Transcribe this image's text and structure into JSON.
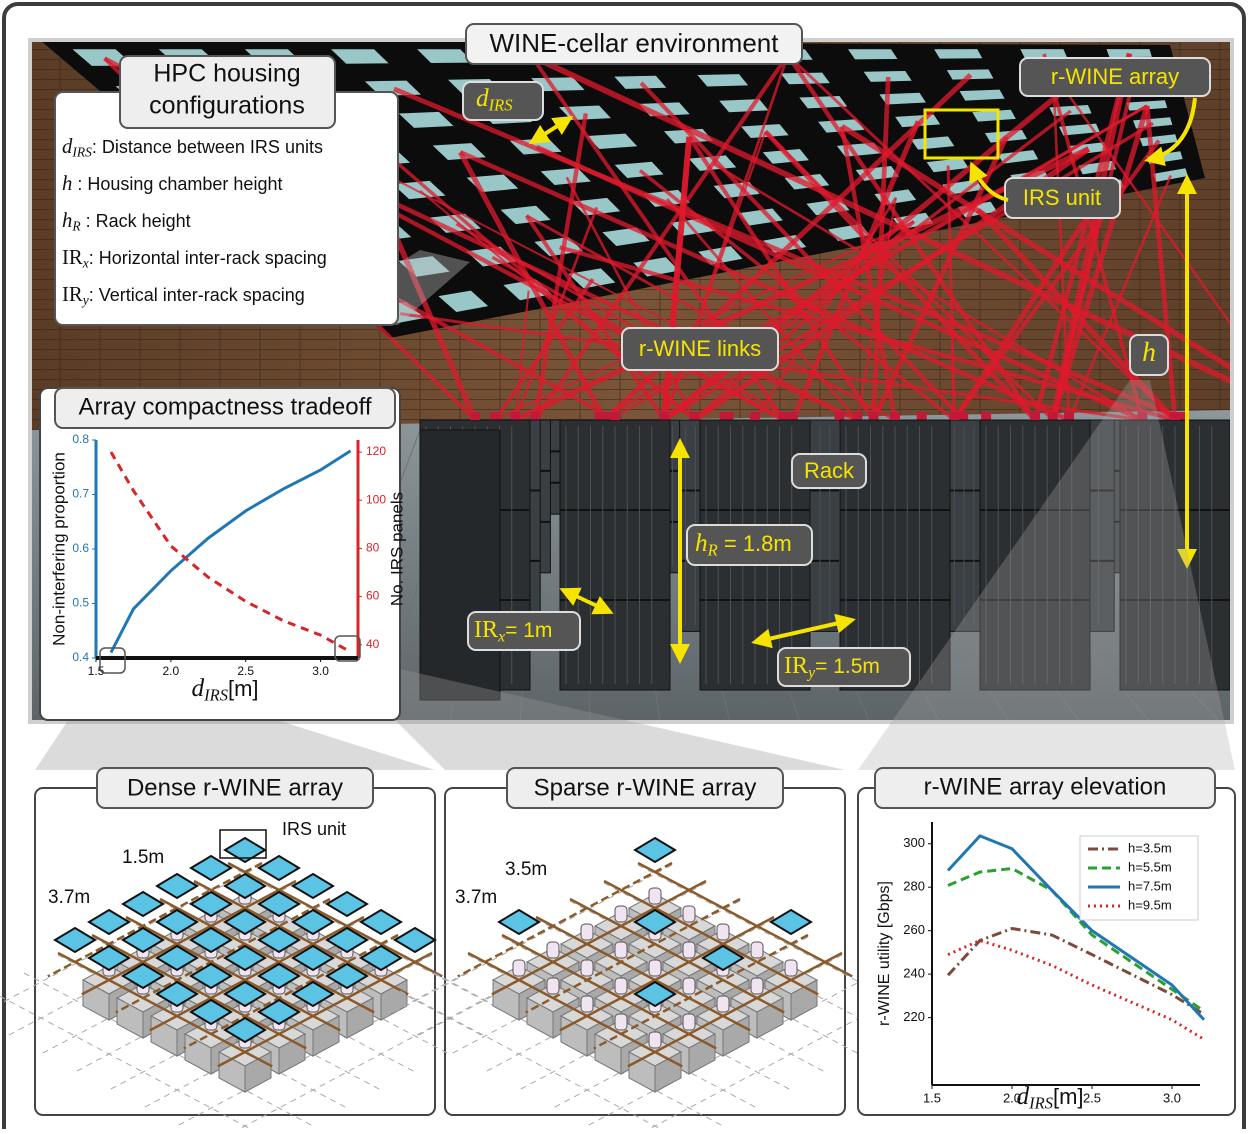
{
  "scene": {
    "title": "WINE-cellar environment",
    "r_wine_array": "r-WINE array",
    "irs_unit": "IRS unit",
    "d_irs": {
      "symbol": "d",
      "sub": "IRS"
    },
    "links": "r-WINE links",
    "h": {
      "symbol": "h"
    },
    "rack": "Rack",
    "h_r": {
      "symbol": "h",
      "sub": "R",
      "text": " = 1.8m"
    },
    "ir_x": {
      "symbol": "IR",
      "sub": "x",
      "text": "= 1m"
    },
    "ir_y": {
      "symbol": "IR",
      "sub": "y",
      "text": "= 1.5m"
    }
  },
  "hpc": {
    "title_lines": [
      "HPC  housing",
      "configurations"
    ],
    "items": [
      {
        "symbol": "d",
        "sub": "IRS",
        "text": ": Distance between IRS units"
      },
      {
        "symbol": "h",
        "text": " : Housing chamber height"
      },
      {
        "symbol": "h",
        "sub": "R",
        "text": " : Rack height"
      },
      {
        "symbol": "IR",
        "sub": "x",
        "text": ": Horizontal inter-rack spacing"
      },
      {
        "symbol": "IR",
        "sub": "y",
        "text": ": Vertical inter-rack spacing"
      }
    ]
  },
  "panels": [
    {
      "title": "Dense r-WINE array",
      "labels": [
        "IRS unit",
        "1.5m",
        "3.7m"
      ]
    },
    {
      "title": "Sparse r-WINE array",
      "labels": [
        "3.5m",
        "3.7m"
      ]
    }
  ],
  "chart_data": [
    {
      "type": "line",
      "title": "Array compactness tradeoff",
      "xlabel": {
        "symbol": "d",
        "sub": "IRS",
        "text": "[m]"
      },
      "ylabel": "Non-interfering proportion",
      "y2label": "No. IRS panels",
      "x": [
        1.6,
        1.75,
        2.0,
        2.25,
        2.5,
        2.75,
        3.0,
        3.2
      ],
      "xlim": [
        1.5,
        3.25
      ],
      "xticks": [
        1.5,
        {
          "value": 2,
          "label": "2.0"
        },
        2.5,
        {
          "value": 3,
          "label": "3.0"
        }
      ],
      "ylim": [
        0.4,
        0.8
      ],
      "yticks": [
        0.4,
        0.5,
        0.6,
        0.7,
        0.8
      ],
      "y2lim": [
        34.5,
        125
      ],
      "y2ticks": [
        40,
        60,
        80,
        100,
        120
      ],
      "series": [
        {
          "color": "#1f77b4",
          "dash": false,
          "values": [
            0.41,
            0.49,
            0.56,
            0.62,
            0.67,
            0.71,
            0.745,
            0.78
          ]
        },
        {
          "color": "#d62728",
          "dash": true,
          "axis": "y2",
          "values": [
            120,
            104,
            81,
            68,
            58,
            50,
            44,
            37
          ]
        }
      ]
    },
    {
      "type": "line",
      "title": "r-WINE array elevation",
      "xlabel": {
        "symbol": "d",
        "sub": "IRS",
        "text": "[m]"
      },
      "ylabel": "r-WINE utility [Gbps]",
      "x": [
        1.6,
        1.8,
        2.0,
        2.25,
        2.5,
        3.0,
        3.2
      ],
      "xlim": [
        1.5,
        3.175
      ],
      "xticks": [
        1.5,
        {
          "value": 2,
          "label": "2.0"
        },
        2.5,
        {
          "value": 3,
          "label": "3.0"
        }
      ],
      "ylim": [
        189,
        310
      ],
      "yticks": [
        220,
        240,
        260,
        280,
        300
      ],
      "legend": "upper right",
      "series": [
        {
          "name": "h=3.5m",
          "color": "#7b4a3a",
          "dash": "10 4 2 4",
          "values": [
            239.5,
            255.5,
            261,
            258,
            249,
            230.6,
            221.5
          ]
        },
        {
          "name": "h=5.5m",
          "color": "#2ca02c",
          "dash": "9 5",
          "values": [
            280.8,
            287,
            288.6,
            278.5,
            258,
            233,
            223
          ]
        },
        {
          "name": "h=7.5m",
          "color": "#1f77b4",
          "dash": "",
          "values": [
            287.7,
            303.6,
            297.7,
            278.5,
            260,
            235,
            219
          ]
        },
        {
          "name": "h=9.5m",
          "color": "#d62728",
          "dash": "2 4",
          "values": [
            249,
            255.5,
            251,
            244,
            235,
            219,
            210
          ]
        }
      ]
    }
  ]
}
